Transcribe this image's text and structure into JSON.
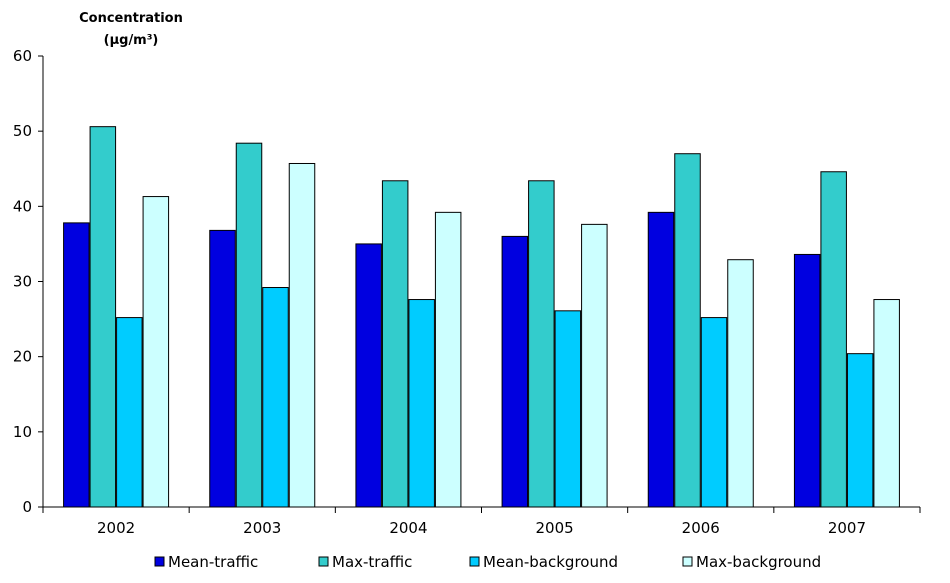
{
  "chart_data": {
    "type": "bar",
    "ylabel_lines": [
      "Concentration",
      "(µg/m³)"
    ],
    "xlabel": "",
    "categories": [
      "2002",
      "2003",
      "2004",
      "2005",
      "2006",
      "2007"
    ],
    "ylim": [
      0,
      60
    ],
    "yticks": [
      0,
      10,
      20,
      30,
      40,
      50,
      60
    ],
    "grid": false,
    "legend_position": "bottom",
    "series": [
      {
        "name": "Mean-traffic",
        "color": "#0000e0",
        "values": [
          37.8,
          36.8,
          35.0,
          36.0,
          39.2,
          33.6
        ]
      },
      {
        "name": "Max-traffic",
        "color": "#33cccc",
        "values": [
          50.6,
          48.4,
          43.4,
          43.4,
          47.0,
          44.6
        ]
      },
      {
        "name": "Mean-background",
        "color": "#00ccff",
        "values": [
          25.2,
          29.2,
          27.6,
          26.1,
          25.2,
          20.4
        ]
      },
      {
        "name": "Max-background",
        "color": "#ccffff",
        "values": [
          41.3,
          45.7,
          39.2,
          37.6,
          32.9,
          27.6
        ]
      }
    ]
  }
}
